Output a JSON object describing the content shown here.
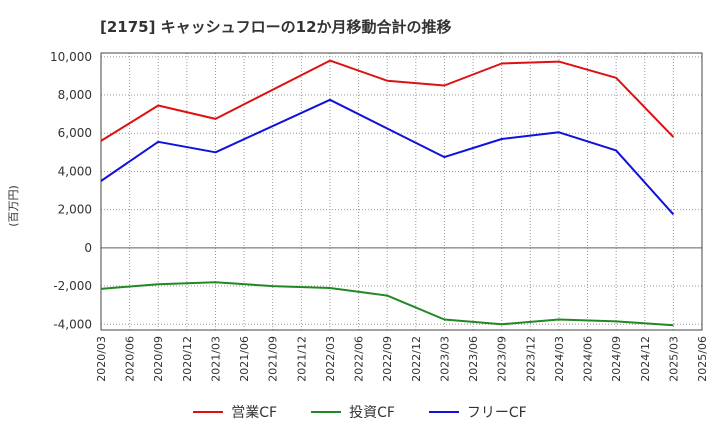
{
  "chart_data": {
    "type": "line",
    "title": "[2175]  キャッシュフローの12か月移動合計の推移",
    "ylabel": "(百万円)",
    "xlabel": "",
    "ylim": [
      -4300,
      10200
    ],
    "yticks": [
      -4000,
      -2000,
      0,
      2000,
      4000,
      6000,
      8000,
      10000
    ],
    "ytick_labels": [
      "-4,000",
      "-2,000",
      "0",
      "2,000",
      "4,000",
      "6,000",
      "8,000",
      "10,000"
    ],
    "categories": [
      "2020/03",
      "2020/06",
      "2020/09",
      "2020/12",
      "2021/03",
      "2021/06",
      "2021/09",
      "2021/12",
      "2022/03",
      "2022/06",
      "2022/09",
      "2022/12",
      "2023/03",
      "2023/06",
      "2023/09",
      "2023/12",
      "2024/03",
      "2024/06",
      "2024/09",
      "2024/12",
      "2025/03",
      "2025/06"
    ],
    "series": [
      {
        "name": "営業CF",
        "color": "#dd1111",
        "points": [
          [
            0,
            5600
          ],
          [
            2,
            7450
          ],
          [
            4,
            6750
          ],
          [
            8,
            9800
          ],
          [
            10,
            8750
          ],
          [
            12,
            8500
          ],
          [
            14,
            9650
          ],
          [
            16,
            9750
          ],
          [
            18,
            8900
          ],
          [
            20,
            5800
          ]
        ]
      },
      {
        "name": "投資CF",
        "color": "#228822",
        "points": [
          [
            0,
            -2150
          ],
          [
            2,
            -1900
          ],
          [
            4,
            -1800
          ],
          [
            6,
            -2000
          ],
          [
            8,
            -2100
          ],
          [
            10,
            -2500
          ],
          [
            12,
            -3750
          ],
          [
            14,
            -4000
          ],
          [
            16,
            -3750
          ],
          [
            18,
            -3850
          ],
          [
            20,
            -4050
          ]
        ]
      },
      {
        "name": "フリーCF",
        "color": "#1111dd",
        "points": [
          [
            0,
            3500
          ],
          [
            2,
            5550
          ],
          [
            4,
            5000
          ],
          [
            8,
            7750
          ],
          [
            10,
            6250
          ],
          [
            12,
            4750
          ],
          [
            14,
            5700
          ],
          [
            16,
            6050
          ],
          [
            18,
            5100
          ],
          [
            20,
            1750
          ]
        ]
      }
    ],
    "grid": true,
    "legend": "bottom"
  }
}
